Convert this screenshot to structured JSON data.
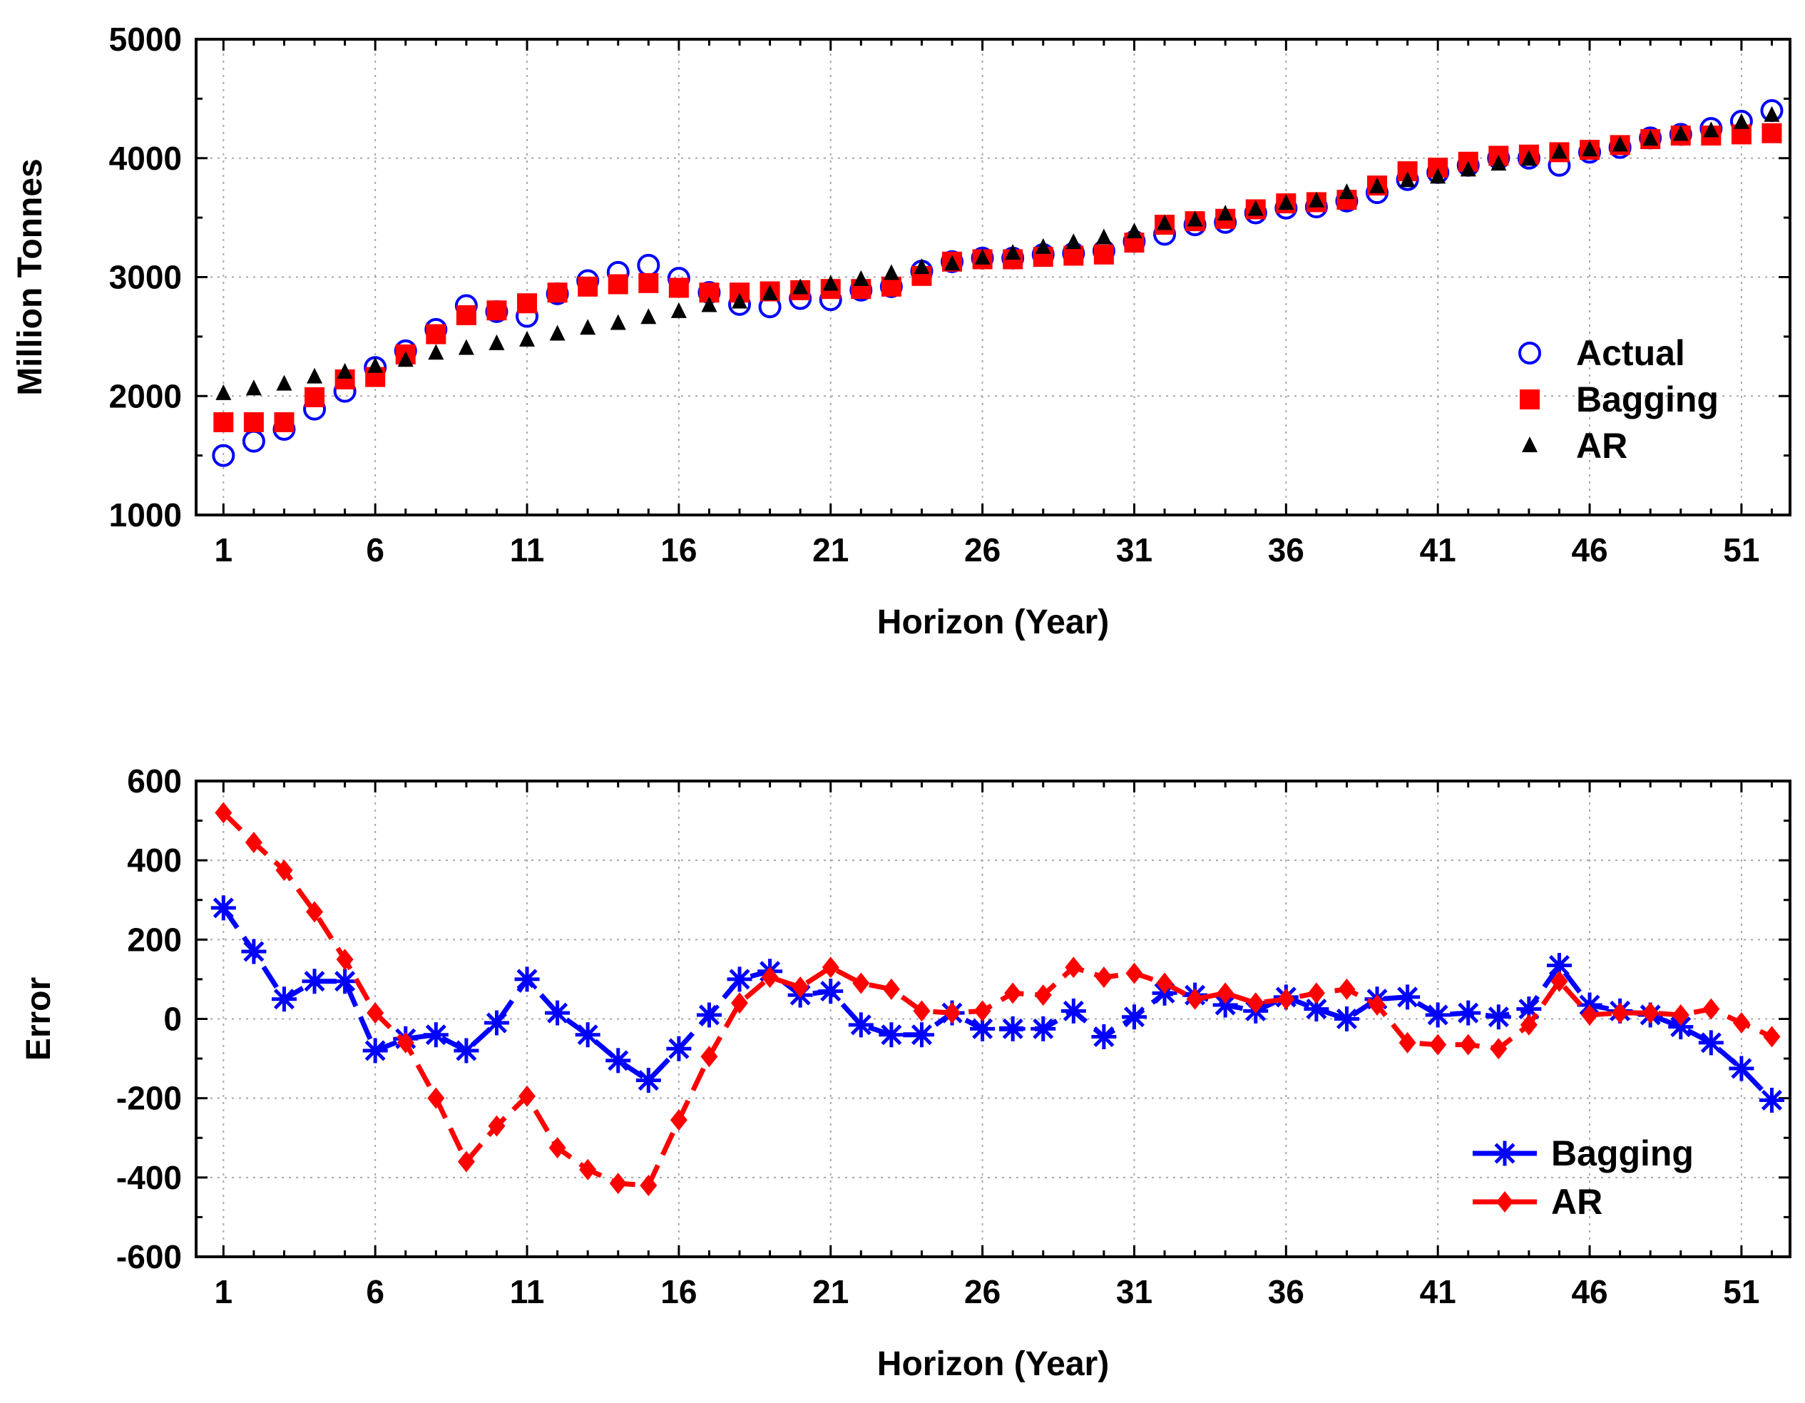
{
  "chart_data": [
    {
      "type": "scatter",
      "xlabel": "Horizon (Year)",
      "ylabel": "Million Tonnes",
      "xlim": [
        0.1,
        52.6
      ],
      "ylim": [
        1000,
        5000
      ],
      "xticks": [
        1,
        6,
        11,
        16,
        21,
        26,
        31,
        36,
        41,
        46,
        51
      ],
      "yticks": [
        1000,
        2000,
        3000,
        4000,
        5000
      ],
      "grid": true,
      "legend": "right",
      "x": [
        1,
        2,
        3,
        4,
        5,
        6,
        7,
        8,
        9,
        10,
        11,
        12,
        13,
        14,
        15,
        16,
        17,
        18,
        19,
        20,
        21,
        22,
        23,
        24,
        25,
        26,
        27,
        28,
        29,
        30,
        31,
        32,
        33,
        34,
        35,
        36,
        37,
        38,
        39,
        40,
        41,
        42,
        43,
        44,
        45,
        46,
        47,
        48,
        49,
        50,
        51,
        52
      ],
      "series": [
        {
          "name": "Actual",
          "marker": "open-circle",
          "color": "#0000ff",
          "values": [
            1500,
            1620,
            1720,
            1890,
            2040,
            2240,
            2380,
            2560,
            2760,
            2710,
            2670,
            2860,
            2970,
            3040,
            3100,
            2990,
            2870,
            2770,
            2750,
            2820,
            2810,
            2890,
            2920,
            3050,
            3130,
            3160,
            3160,
            3190,
            3200,
            3220,
            3300,
            3360,
            3440,
            3460,
            3540,
            3580,
            3590,
            3640,
            3710,
            3820,
            3880,
            3940,
            4000,
            4000,
            3940,
            4050,
            4090,
            4170,
            4200,
            4250,
            4310,
            4400
          ]
        },
        {
          "name": "Bagging",
          "marker": "filled-square",
          "color": "#ff0000",
          "values": [
            1780,
            1780,
            1780,
            1990,
            2140,
            2160,
            2350,
            2520,
            2680,
            2720,
            2780,
            2870,
            2920,
            2940,
            2950,
            2910,
            2870,
            2870,
            2880,
            2890,
            2900,
            2900,
            2920,
            3010,
            3130,
            3150,
            3150,
            3170,
            3180,
            3190,
            3290,
            3440,
            3470,
            3490,
            3570,
            3620,
            3630,
            3650,
            3770,
            3890,
            3920,
            3970,
            4020,
            4030,
            4050,
            4070,
            4110,
            4160,
            4190,
            4190,
            4200,
            4210
          ]
        },
        {
          "name": "AR",
          "marker": "filled-triangle",
          "color": "#000000",
          "values": [
            2020,
            2060,
            2100,
            2160,
            2200,
            2250,
            2300,
            2360,
            2400,
            2440,
            2470,
            2520,
            2570,
            2610,
            2660,
            2710,
            2760,
            2790,
            2860,
            2910,
            2940,
            2980,
            3030,
            3080,
            3110,
            3160,
            3200,
            3250,
            3290,
            3330,
            3380,
            3450,
            3480,
            3530,
            3570,
            3620,
            3640,
            3710,
            3760,
            3810,
            3840,
            3900,
            3950,
            3990,
            4050,
            4070,
            4110,
            4160,
            4200,
            4230,
            4300,
            4360
          ]
        }
      ]
    },
    {
      "type": "line",
      "xlabel": "Horizon (Year)",
      "ylabel": "Error",
      "xlim": [
        0.1,
        52.6
      ],
      "ylim": [
        -600,
        600
      ],
      "xticks": [
        1,
        6,
        11,
        16,
        21,
        26,
        31,
        36,
        41,
        46,
        51
      ],
      "yticks": [
        -600,
        -400,
        -200,
        0,
        200,
        400,
        600
      ],
      "grid": true,
      "legend": "bottom-right",
      "x": [
        1,
        2,
        3,
        4,
        5,
        6,
        7,
        8,
        9,
        10,
        11,
        12,
        13,
        14,
        15,
        16,
        17,
        18,
        19,
        20,
        21,
        22,
        23,
        24,
        25,
        26,
        27,
        28,
        29,
        30,
        31,
        32,
        33,
        34,
        35,
        36,
        37,
        38,
        39,
        40,
        41,
        42,
        43,
        44,
        45,
        46,
        47,
        48,
        49,
        50,
        51,
        52
      ],
      "series": [
        {
          "name": "Bagging",
          "marker": "asterisk",
          "line": "dashed",
          "color": "#0000ff",
          "values": [
            280,
            170,
            50,
            95,
            95,
            -80,
            -50,
            -40,
            -80,
            -10,
            100,
            15,
            -40,
            -105,
            -155,
            -75,
            10,
            100,
            120,
            60,
            70,
            -15,
            -40,
            -40,
            15,
            -25,
            -25,
            -25,
            20,
            -45,
            5,
            65,
            60,
            35,
            20,
            55,
            25,
            0,
            50,
            55,
            10,
            15,
            5,
            25,
            135,
            35,
            20,
            10,
            -20,
            -60,
            -125,
            -205
          ]
        },
        {
          "name": "AR",
          "marker": "filled-diamond",
          "line": "dashed",
          "color": "#ff0000",
          "values": [
            520,
            445,
            375,
            270,
            150,
            15,
            -60,
            -200,
            -360,
            -270,
            -195,
            -325,
            -380,
            -415,
            -420,
            -255,
            -95,
            40,
            105,
            80,
            130,
            90,
            75,
            20,
            15,
            20,
            65,
            60,
            130,
            105,
            115,
            90,
            50,
            65,
            40,
            50,
            65,
            75,
            35,
            -60,
            -65,
            -65,
            -75,
            -15,
            95,
            10,
            15,
            15,
            10,
            25,
            -10,
            -45
          ]
        }
      ]
    }
  ]
}
